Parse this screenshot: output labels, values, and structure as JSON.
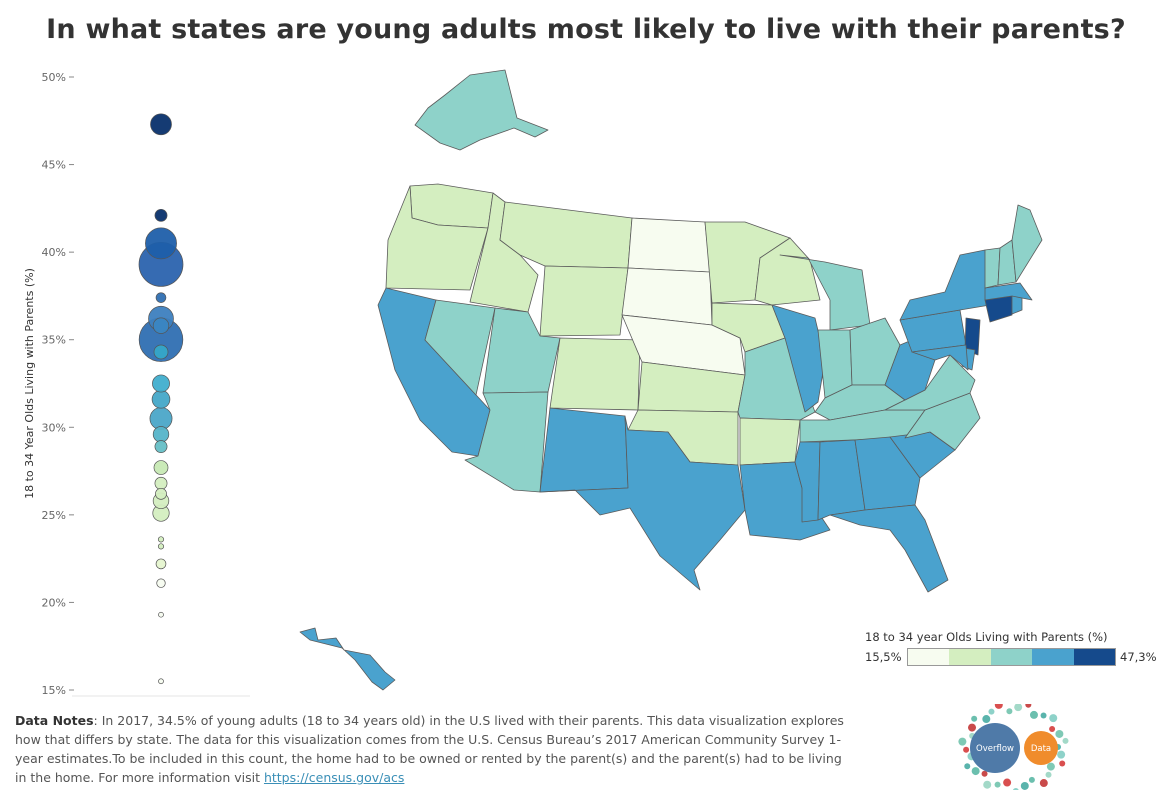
{
  "page": {
    "title": "In what states are young adults most likely to live with their parents?"
  },
  "chart_data": [
    {
      "type": "scatter",
      "title": "",
      "ylabel": "18 to 34 Year Olds Living with Parents (%)",
      "ylim": [
        15,
        50
      ],
      "yticks": [
        "50%",
        "45%",
        "40%",
        "35%",
        "30%",
        "25%",
        "20%",
        "15%"
      ],
      "ytick_values": [
        50,
        45,
        40,
        35,
        30,
        25,
        20,
        15
      ],
      "points": [
        {
          "y": 47.3,
          "size": 9.0,
          "color": "#08306b"
        },
        {
          "y": 42.1,
          "size": 3.0,
          "color": "#08306b"
        },
        {
          "y": 40.5,
          "size": 19.8,
          "color": "#1f5faa"
        },
        {
          "y": 39.3,
          "size": 39.5,
          "color": "#2b63ae"
        },
        {
          "y": 37.4,
          "size": 2.0,
          "color": "#2f6fb2"
        },
        {
          "y": 36.2,
          "size": 12.7,
          "color": "#3d7fbf"
        },
        {
          "y": 35.8,
          "size": 5.0,
          "color": "#3a86c2"
        },
        {
          "y": 35.0,
          "size": 39.0,
          "color": "#2f6fb2"
        },
        {
          "y": 34.3,
          "size": 4.0,
          "color": "#35a6c8"
        },
        {
          "y": 32.5,
          "size": 6.0,
          "color": "#40aece"
        },
        {
          "y": 31.6,
          "size": 6.5,
          "color": "#45a8c8"
        },
        {
          "y": 30.5,
          "size": 10.0,
          "color": "#4ba6c8"
        },
        {
          "y": 29.6,
          "size": 5.0,
          "color": "#55b4c9"
        },
        {
          "y": 28.9,
          "size": 3.0,
          "color": "#65bfc6"
        },
        {
          "y": 27.7,
          "size": 4.0,
          "color": "#c7e9b4"
        },
        {
          "y": 26.8,
          "size": 3.0,
          "color": "#d4eec0"
        },
        {
          "y": 26.2,
          "size": 2.5,
          "color": "#d4eec0"
        },
        {
          "y": 25.8,
          "size": 5.0,
          "color": "#d4eec0"
        },
        {
          "y": 25.1,
          "size": 5.5,
          "color": "#d4eec0"
        },
        {
          "y": 23.6,
          "size": 0.6,
          "color": "#d4eec0"
        },
        {
          "y": 23.2,
          "size": 0.6,
          "color": "#d4eec0"
        },
        {
          "y": 22.2,
          "size": 2.0,
          "color": "#e6f5d0"
        },
        {
          "y": 21.1,
          "size": 1.5,
          "color": "#f7fcf0"
        },
        {
          "y": 19.3,
          "size": 0.5,
          "color": "#f7fcf0"
        },
        {
          "y": 15.5,
          "size": 0.5,
          "color": "#f7fcf0"
        }
      ]
    },
    {
      "type": "choropleth",
      "title": "",
      "legend_title": "18 to 34 year Olds Living with Parents (%)",
      "legend_min": "15,5%",
      "legend_max": "47,3%",
      "bins": [
        "#f7fcf0",
        "#d4eec0",
        "#8ed2c9",
        "#4aa2ce",
        "#154a8c"
      ],
      "states": {
        "WA": 1,
        "OR": 1,
        "ID": 1,
        "MT": 1,
        "WY": 1,
        "CO": 1,
        "KS": 1,
        "OK": 1,
        "AR": 1,
        "MN": 1,
        "WI": 1,
        "IA": 1,
        "NE": 0,
        "SD": 0,
        "ND": 0,
        "NV": 2,
        "UT": 2,
        "AZ": 2,
        "MO": 2,
        "MI": 2,
        "IN": 2,
        "OH": 2,
        "KY": 2,
        "TN": 2,
        "VA": 2,
        "NC": 2,
        "ME": 2,
        "VT": 2,
        "NH": 2,
        "AK": 2,
        "CA": 3,
        "NM": 3,
        "TX": 3,
        "LA": 3,
        "MS": 3,
        "AL": 3,
        "GA": 3,
        "FL": 3,
        "SC": 3,
        "IL": 3,
        "NY": 3,
        "PA": 3,
        "WV": 3,
        "MD": 3,
        "DE": 3,
        "MA": 3,
        "RI": 3,
        "HI": 3,
        "NJ": 4,
        "CT": 4
      }
    }
  ],
  "notes": {
    "label": "Data Notes",
    "text": ": In 2017, 34.5% of young adults (18 to 34 years old) in the U.S lived with their parents. This data visualization explores how that differs by state. The data for this visualization comes from the U.S. Census Bureau’s 2017 American Community Survey 1-year estimates.To be included in this count, the home had to be owned or rented by the parent(s) and the parent(s) had to be living in the home. For more information visit ",
    "link": "https://census.gov/acs"
  },
  "logo": {
    "left_text": "Overflow",
    "right_text": "Data",
    "left_color": "#4f7aa8",
    "right_color": "#f08c2c"
  }
}
